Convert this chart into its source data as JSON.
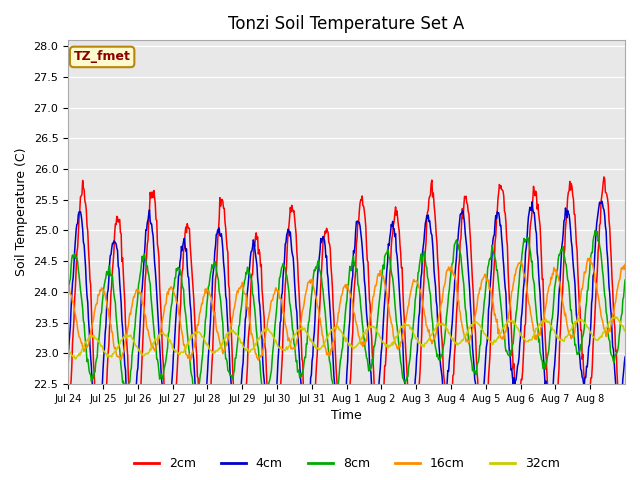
{
  "title": "Tonzi Soil Temperature Set A",
  "xlabel": "Time",
  "ylabel": "Soil Temperature (C)",
  "ylim": [
    22.5,
    28.1
  ],
  "annotation": "TZ_fmet",
  "annotation_color": "#8B0000",
  "annotation_bg": "#FFFACD",
  "annotation_border": "#B8860B",
  "colors": {
    "2cm": "#FF0000",
    "4cm": "#0000CC",
    "8cm": "#00AA00",
    "16cm": "#FF8C00",
    "32cm": "#CCCC00"
  },
  "bg_color": "#E8E8E8",
  "tick_labels": [
    "Jul 24",
    "Jul 25",
    "Jul 26",
    "Jul 27",
    "Jul 28",
    "Jul 29",
    "Jul 30",
    "Jul 31",
    "Aug 1",
    "Aug 2",
    "Aug 3",
    "Aug 4",
    "Aug 5",
    "Aug 6",
    "Aug 7",
    "Aug 8"
  ],
  "n_days": 16,
  "pts_per_day": 48
}
